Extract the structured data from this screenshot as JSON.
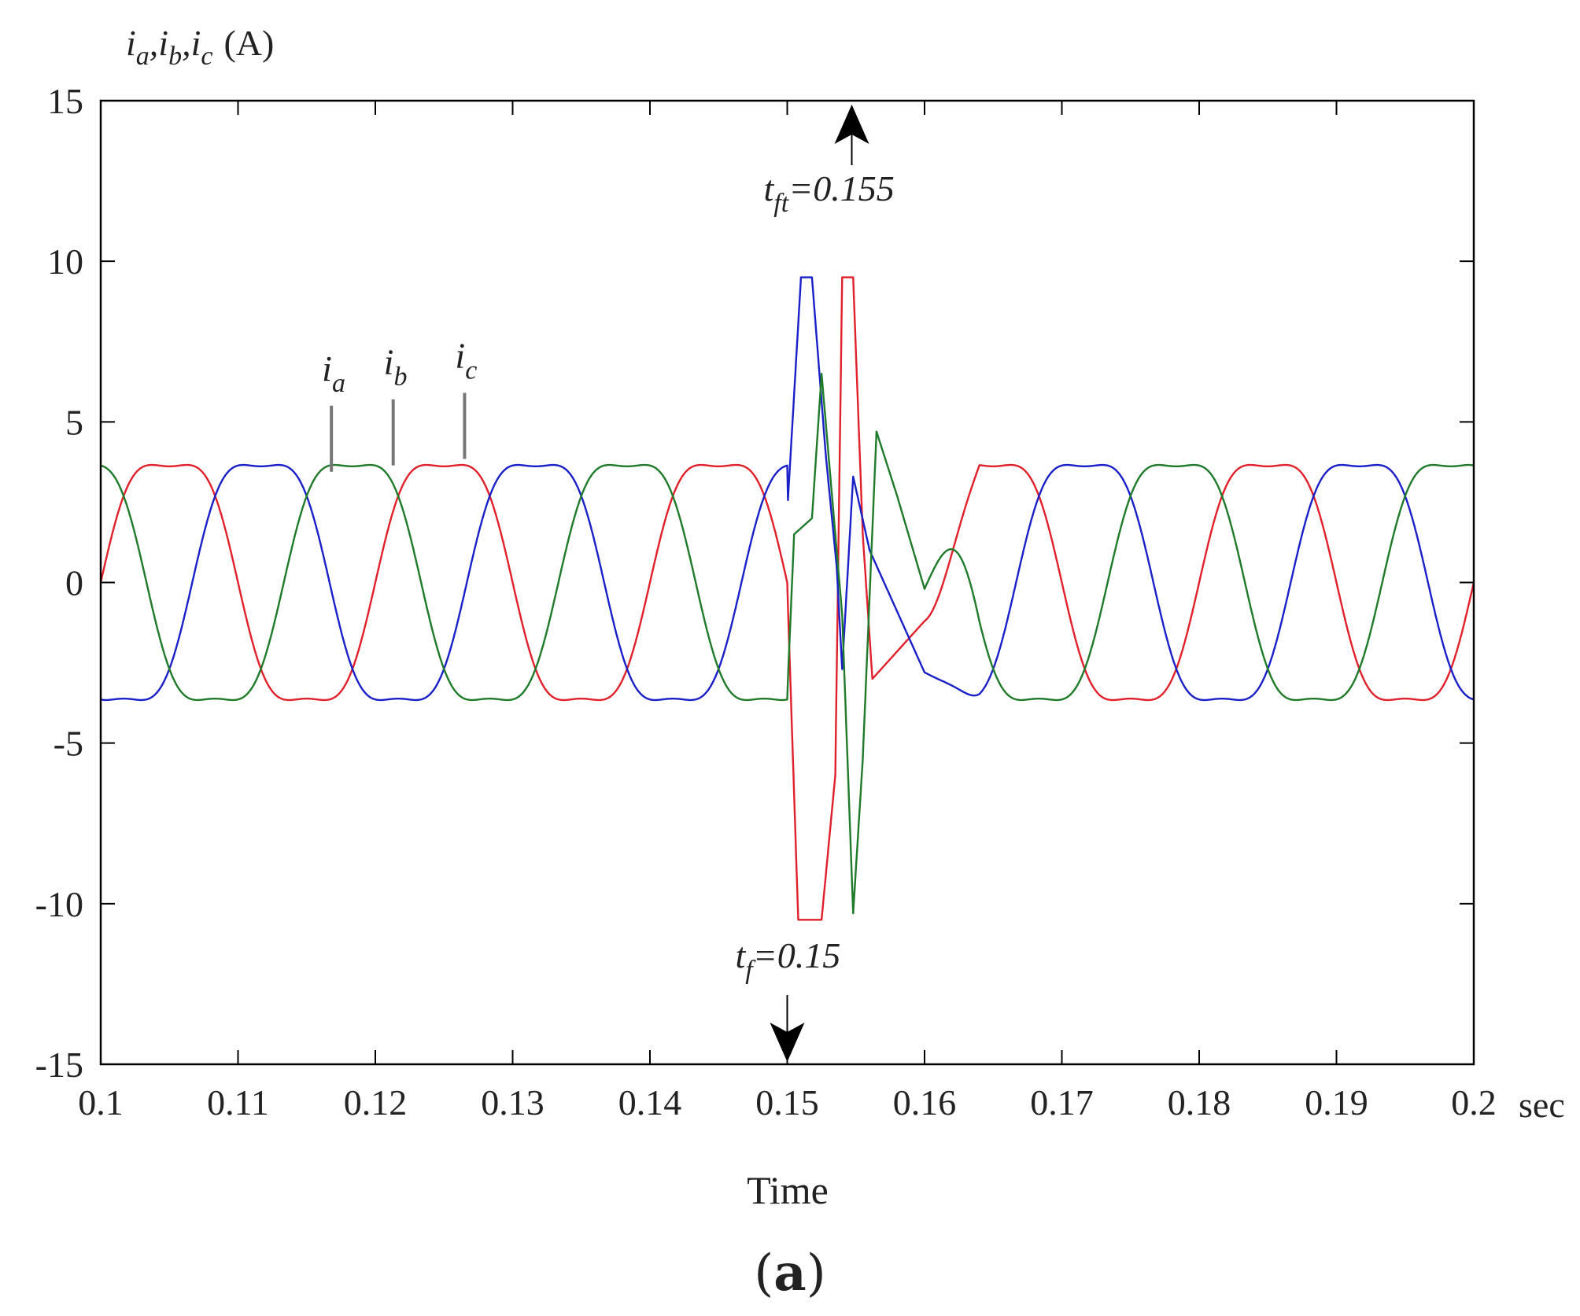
{
  "chart_data": {
    "type": "line",
    "ylabel": {
      "parts": [
        "i",
        "a",
        ",",
        "i",
        "b",
        ",",
        "i",
        "c"
      ],
      "unit": "(A)"
    },
    "xlabel": "Time",
    "x_unit": "sec",
    "xlim": [
      0.1,
      0.2
    ],
    "ylim": [
      -15,
      15
    ],
    "xticks": [
      0.1,
      0.11,
      0.12,
      0.13,
      0.14,
      0.15,
      0.16,
      0.17,
      0.18,
      0.19,
      0.2
    ],
    "xtick_labels": [
      "0.1",
      "0.11",
      "0.12",
      "0.13",
      "0.14",
      "0.15",
      "0.16",
      "0.17",
      "0.18",
      "0.19",
      "0.2"
    ],
    "yticks": [
      15,
      10,
      5,
      0,
      -5,
      -10,
      -15
    ],
    "ytick_labels": [
      "15",
      "10",
      "5",
      "0",
      "-5",
      "-10",
      "-15"
    ],
    "grid": false,
    "steady_state": {
      "amplitude": 3.7,
      "frequency_hz": 50
    },
    "series": [
      {
        "color": "#e0202a",
        "phase_deg": 0,
        "fault_points": [
          [
            0.15,
            -0.1
          ],
          [
            0.1508,
            -10.5
          ],
          [
            0.1525,
            -10.5
          ],
          [
            0.1535,
            -6.0
          ],
          [
            0.154,
            9.5
          ],
          [
            0.1548,
            9.5
          ],
          [
            0.1555,
            1.5
          ],
          [
            0.1562,
            -3.0
          ],
          [
            0.16,
            -1.2
          ]
        ]
      },
      {
        "color": "#1a20c8",
        "phase_deg": -120,
        "fault_points": [
          [
            0.15,
            2.2
          ],
          [
            0.151,
            9.5
          ],
          [
            0.1518,
            9.5
          ],
          [
            0.1528,
            4.0
          ],
          [
            0.1536,
            0.5
          ],
          [
            0.154,
            -2.7
          ],
          [
            0.1548,
            3.3
          ],
          [
            0.156,
            1.0
          ],
          [
            0.16,
            -2.8
          ]
        ]
      },
      {
        "color": "#1f7a2a",
        "phase_deg": 120,
        "fault_points": [
          [
            0.15,
            -3.5
          ],
          [
            0.1505,
            1.5
          ],
          [
            0.1518,
            2.0
          ],
          [
            0.1525,
            6.5
          ],
          [
            0.154,
            -1.0
          ],
          [
            0.1548,
            -10.3
          ],
          [
            0.1555,
            -5.5
          ],
          [
            0.1565,
            4.7
          ],
          [
            0.158,
            2.7
          ],
          [
            0.16,
            -0.2
          ]
        ]
      }
    ],
    "annotations": {
      "curve_labels": [
        {
          "letter": "i",
          "sub": "a",
          "x": 0.1168,
          "y": 3.3
        },
        {
          "letter": "i",
          "sub": "b",
          "x": 0.1213,
          "y": 3.5
        },
        {
          "letter": "i",
          "sub": "c",
          "x": 0.1265,
          "y": 3.7
        }
      ],
      "fault_start": {
        "letter": "t",
        "sub": "f",
        "value_text": "=0.15",
        "x": 0.15
      },
      "fault_clear": {
        "letter": "t",
        "sub": "ft",
        "value_text": "=0.155",
        "x": 0.1547
      }
    }
  },
  "caption": {
    "open": "(",
    "letter": "a",
    "close": ")"
  }
}
